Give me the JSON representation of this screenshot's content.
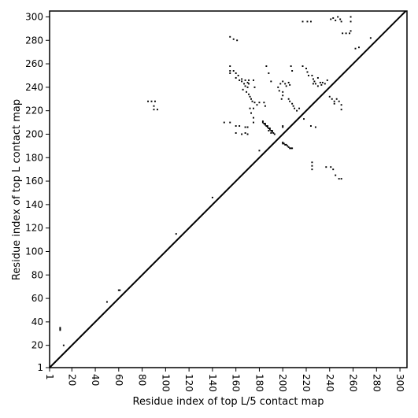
{
  "chart_data": {
    "type": "scatter",
    "xlabel": "Residue index of top L/5 contact map",
    "ylabel": "Residue index of top L contact map",
    "xlim": [
      1,
      306
    ],
    "ylim": [
      1,
      305
    ],
    "xticks": [
      1,
      20,
      40,
      60,
      80,
      100,
      120,
      140,
      160,
      180,
      200,
      220,
      240,
      260,
      280,
      300
    ],
    "yticks": [
      1,
      20,
      40,
      60,
      80,
      100,
      120,
      140,
      160,
      180,
      200,
      220,
      240,
      260,
      280,
      300
    ],
    "color": "#000000",
    "x": [
      10,
      10,
      10,
      13,
      50,
      60,
      61,
      109,
      140,
      180,
      183,
      184,
      185,
      186,
      187,
      188,
      189,
      190,
      191,
      192,
      193,
      183,
      185,
      187,
      189,
      191,
      188,
      190,
      200,
      201,
      202,
      203,
      204,
      205,
      206,
      207,
      208,
      200,
      200,
      200,
      225,
      225,
      225,
      237,
      241,
      243,
      245,
      248,
      250,
      218,
      224,
      228,
      150,
      155,
      160,
      163,
      160,
      165,
      168,
      170,
      170,
      168,
      85,
      88,
      91,
      90,
      90,
      93,
      155,
      158,
      161,
      155,
      155,
      155,
      158,
      160,
      162,
      160,
      163,
      165,
      167,
      168,
      170,
      166,
      169,
      171,
      172,
      173,
      174,
      176,
      178,
      175,
      172,
      173,
      175,
      175,
      168,
      171,
      175,
      171,
      176,
      170,
      165,
      180,
      184,
      186,
      188,
      190,
      185,
      196,
      197,
      198,
      200,
      202,
      203,
      205,
      206,
      207,
      208,
      205,
      206,
      208,
      209,
      210,
      212,
      214,
      200,
      200,
      199,
      217,
      220,
      221,
      222,
      225,
      226,
      227,
      228,
      230,
      232,
      233,
      234,
      236,
      238,
      240,
      242,
      244,
      246,
      248,
      250,
      250,
      244,
      230,
      226,
      217,
      221,
      224,
      241,
      243,
      245,
      247,
      249,
      250,
      251,
      254,
      257,
      258,
      258,
      258,
      262,
      265,
      275
    ],
    "values": [
      33,
      34,
      35,
      20,
      57,
      67,
      67,
      115,
      146,
      186,
      210,
      209,
      208,
      207,
      206,
      205,
      204,
      203,
      202,
      201,
      200,
      211,
      209,
      207,
      205,
      203,
      203,
      201,
      193,
      192,
      191,
      191,
      190,
      189,
      188,
      188,
      188,
      192,
      207,
      206,
      170,
      173,
      176,
      172,
      172,
      170,
      165,
      162,
      162,
      213,
      207,
      206,
      210,
      210,
      207,
      207,
      201,
      200,
      201,
      200,
      206,
      206,
      228,
      228,
      228,
      224,
      221,
      221,
      283,
      281,
      280,
      258,
      254,
      252,
      254,
      252,
      250,
      248,
      246,
      245,
      243,
      241,
      240,
      238,
      236,
      234,
      232,
      230,
      228,
      227,
      225,
      222,
      222,
      218,
      214,
      210,
      246,
      246,
      246,
      243,
      240,
      244,
      247,
      227,
      227,
      258,
      252,
      245,
      224,
      240,
      237,
      243,
      245,
      243,
      241,
      244,
      242,
      258,
      254,
      230,
      228,
      226,
      224,
      222,
      220,
      222,
      236,
      233,
      230,
      258,
      256,
      253,
      250,
      250,
      247,
      245,
      243,
      248,
      244,
      242,
      244,
      243,
      246,
      232,
      230,
      228,
      230,
      228,
      225,
      221,
      226,
      241,
      243,
      296,
      296,
      296,
      298,
      299,
      297,
      300,
      298,
      296,
      286,
      286,
      286,
      288,
      296,
      300,
      273,
      274,
      282
    ]
  }
}
